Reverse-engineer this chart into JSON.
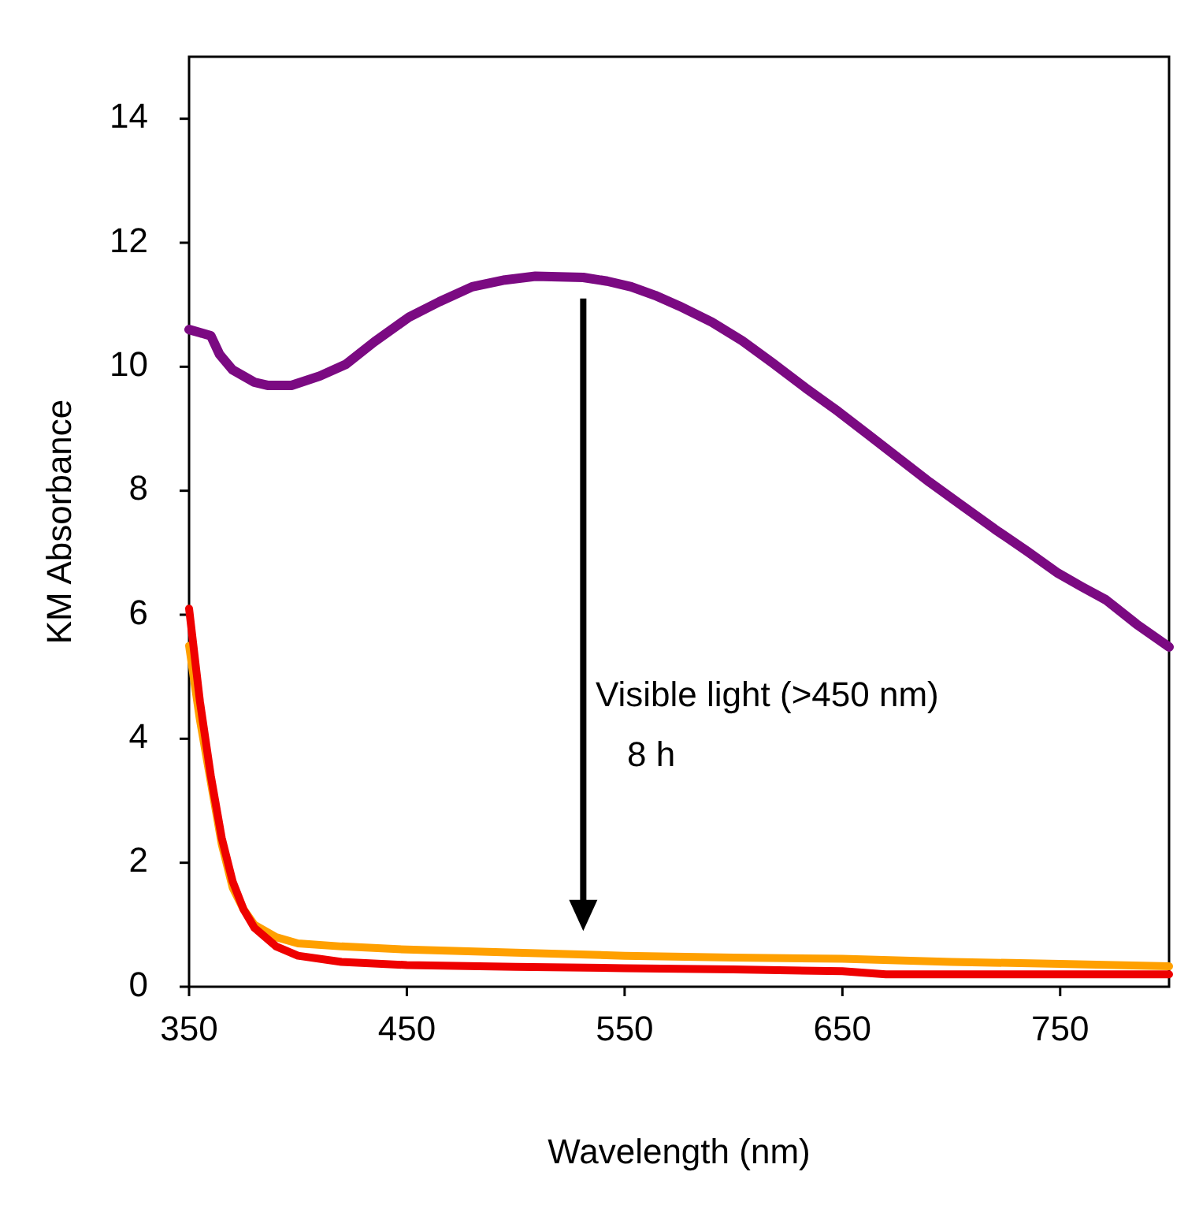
{
  "chart_data": {
    "type": "line",
    "xlabel": "Wavelength (nm)",
    "ylabel": "KM Absorbance",
    "xlim": [
      350,
      800
    ],
    "xticks": [
      350,
      450,
      550,
      650,
      750
    ],
    "ylim": [
      0,
      15
    ],
    "yticks": [
      0,
      2,
      4,
      6,
      8,
      10,
      12,
      14
    ],
    "grid": false,
    "line_style": "solid",
    "series": [
      {
        "color": "#7b0a82",
        "x": [
          350,
          355,
          360,
          364,
          370,
          380,
          386,
          397,
          410,
          422,
          435,
          451,
          465,
          480,
          495,
          509,
          520,
          531,
          542,
          553,
          564,
          575,
          590,
          604,
          618,
          633,
          648,
          662,
          676,
          690,
          705,
          720,
          735,
          749,
          760,
          771,
          785,
          800
        ],
        "values": [
          10.6,
          10.55,
          10.5,
          10.2,
          9.95,
          9.75,
          9.7,
          9.7,
          9.85,
          10.04,
          10.4,
          10.8,
          11.05,
          11.29,
          11.4,
          11.46,
          11.45,
          11.44,
          11.38,
          11.29,
          11.15,
          10.98,
          10.72,
          10.42,
          10.06,
          9.66,
          9.28,
          8.9,
          8.52,
          8.14,
          7.76,
          7.38,
          7.02,
          6.67,
          6.45,
          6.24,
          5.85,
          5.48
        ]
      },
      {
        "color": "#ffa000",
        "x": [
          350,
          355,
          360,
          365,
          370,
          375,
          380,
          390,
          400,
          420,
          450,
          500,
          550,
          600,
          650,
          700,
          750,
          800
        ],
        "values": [
          5.5,
          4.3,
          3.3,
          2.3,
          1.6,
          1.25,
          1.0,
          0.8,
          0.7,
          0.65,
          0.6,
          0.55,
          0.5,
          0.47,
          0.45,
          0.4,
          0.37,
          0.33
        ]
      },
      {
        "color": "#ee0000",
        "x": [
          350,
          355,
          360,
          365,
          370,
          375,
          380,
          390,
          400,
          420,
          450,
          500,
          550,
          600,
          650,
          670,
          700,
          750,
          800
        ],
        "values": [
          6.1,
          4.6,
          3.4,
          2.4,
          1.7,
          1.25,
          0.95,
          0.65,
          0.5,
          0.4,
          0.35,
          0.32,
          0.3,
          0.28,
          0.25,
          0.2,
          0.2,
          0.2,
          0.2
        ]
      }
    ],
    "annotations": [
      "Visible light (>450 nm)",
      "8 h"
    ]
  }
}
